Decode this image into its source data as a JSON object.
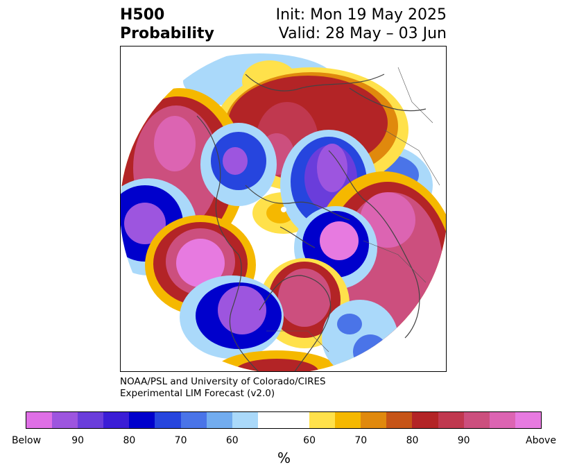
{
  "title": {
    "left_line1": "H500",
    "left_line2": "Probability",
    "right_line1": "Init: Mon 19 May 2025",
    "right_line2": "Valid: 28 May – 03 Jun"
  },
  "credit": {
    "line1": "NOAA/PSL and University of Colorado/CIRES",
    "line2": "Experimental LIM Forecast (v2.0)"
  },
  "colorbar": {
    "unit_label": "%",
    "colors": [
      "#df6fe6",
      "#9d55df",
      "#6a3ddb",
      "#3b1dd6",
      "#0000cc",
      "#2645de",
      "#4a74e8",
      "#72acef",
      "#aad9fa",
      "#ffffff",
      "#ffe14b",
      "#f5b800",
      "#e0890d",
      "#c65417",
      "#b32426",
      "#c0384f",
      "#cc4f7e",
      "#dc64b2",
      "#e77ae0"
    ],
    "tick_labels": [
      "Below",
      "90",
      "80",
      "70",
      "60",
      "60",
      "70",
      "80",
      "90",
      "Above"
    ]
  },
  "map": {
    "projection": "north polar stereographic",
    "colors": {
      "below_strong": "#9d55df",
      "below": "#0000cc",
      "below_light": "#72acef",
      "neutral": "#ffffff",
      "above_light": "#ffe14b",
      "above": "#b32426",
      "above_strong": "#dc64b2"
    }
  }
}
